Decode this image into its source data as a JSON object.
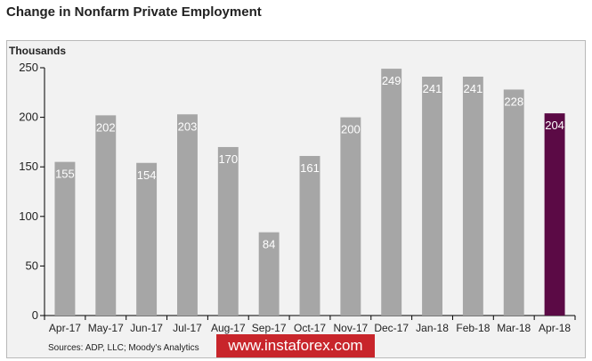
{
  "header": {
    "title": "Change in Nonfarm Private Employment"
  },
  "footer": {
    "source": "Sources: ADP, LLC; Moody's Analytics",
    "watermark": "www.instaforex.com"
  },
  "colors": {
    "bar": "#a6a6a6",
    "highlight": "#5b0a45",
    "panel": "#f2f2f2"
  },
  "chart_data": {
    "type": "bar",
    "title": "Change in Nonfarm Private Employment",
    "ylabel": "Thousands",
    "xlabel": "",
    "ylim": [
      0,
      250
    ],
    "yticks": [
      0,
      50,
      100,
      150,
      200,
      250
    ],
    "grid": false,
    "categories": [
      "Apr-17",
      "May-17",
      "Jun-17",
      "Jul-17",
      "Aug-17",
      "Sep-17",
      "Oct-17",
      "Nov-17",
      "Dec-17",
      "Jan-18",
      "Feb-18",
      "Mar-18",
      "Apr-18"
    ],
    "values": [
      155,
      202,
      154,
      203,
      170,
      84,
      161,
      200,
      249,
      241,
      241,
      228,
      204
    ],
    "data_labels": [
      "155",
      "202",
      "154",
      "203",
      "170",
      "84",
      "161",
      "200",
      "249",
      "241",
      "241",
      "228",
      "204"
    ],
    "highlight": "Apr-18"
  }
}
